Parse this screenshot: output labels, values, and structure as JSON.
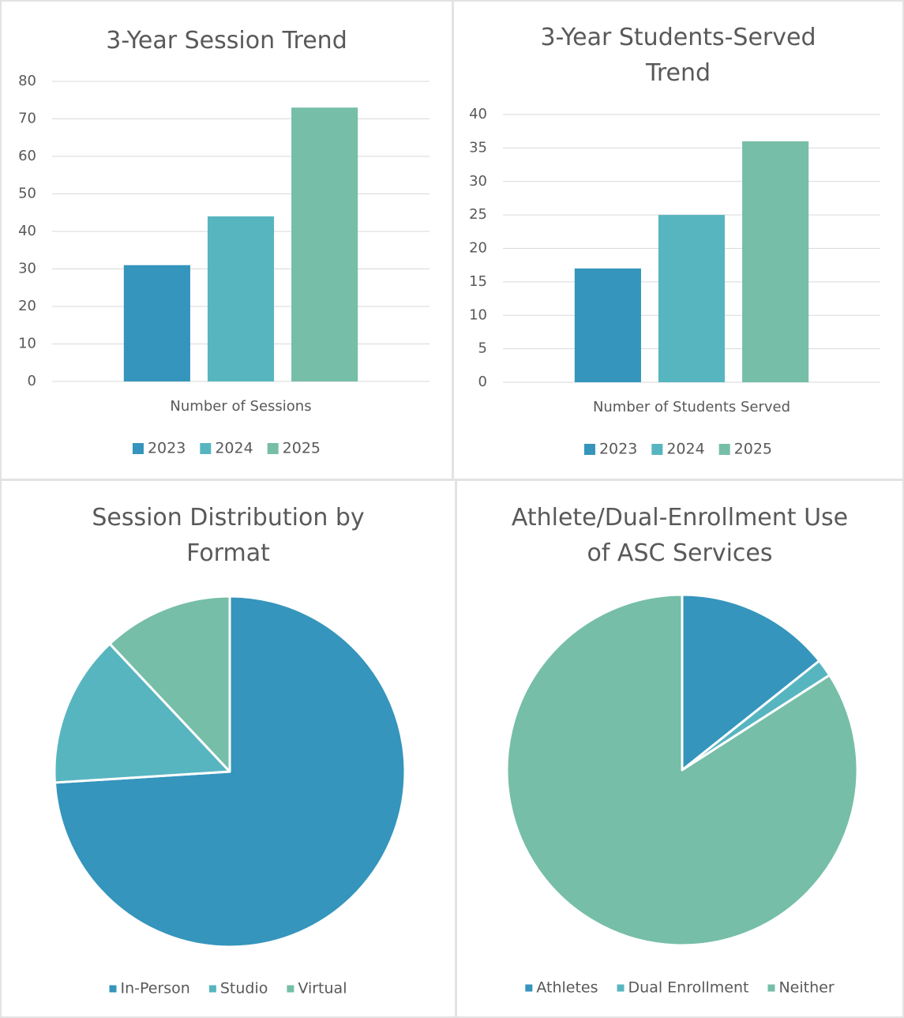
{
  "chart_data": [
    {
      "type": "bar",
      "title": "3-Year Session Trend",
      "categories": [
        "Number of Sessions"
      ],
      "series": [
        {
          "name": "2023",
          "color": "#3595bc",
          "values": [
            31
          ]
        },
        {
          "name": "2024",
          "color": "#57b5c0",
          "values": [
            44
          ]
        },
        {
          "name": "2025",
          "color": "#76bea8",
          "values": [
            73
          ]
        }
      ],
      "ylim": [
        0,
        80
      ],
      "yticks": [
        0,
        10,
        20,
        30,
        40,
        50,
        60,
        70,
        80
      ],
      "grid": true,
      "legend": "bottom"
    },
    {
      "type": "bar",
      "title": "3-Year Students-Served Trend",
      "categories": [
        "Number of Students Served"
      ],
      "series": [
        {
          "name": "2023",
          "color": "#3595bc",
          "values": [
            17
          ]
        },
        {
          "name": "2024",
          "color": "#57b5c0",
          "values": [
            25
          ]
        },
        {
          "name": "2025",
          "color": "#76bea8",
          "values": [
            36
          ]
        }
      ],
      "ylim": [
        0,
        40
      ],
      "yticks": [
        0,
        5,
        10,
        15,
        20,
        25,
        30,
        35,
        40
      ],
      "grid": true,
      "legend": "bottom"
    },
    {
      "type": "pie",
      "title": "Session Distribution by Format",
      "categories": [
        "In-Person",
        "Studio",
        "Virtual"
      ],
      "values": [
        74,
        14,
        12
      ],
      "colors": [
        "#3595bc",
        "#57b5c0",
        "#76bea8"
      ],
      "legend": "bottom"
    },
    {
      "type": "pie",
      "title": "Athlete/Dual-Enrollment Use of ASC Services",
      "categories": [
        "Athletes",
        "Dual Enrollment",
        "Neither"
      ],
      "values": [
        14.3,
        1.6,
        84.1
      ],
      "colors": [
        "#3595bc",
        "#57b5c0",
        "#76bea8"
      ],
      "legend": "bottom"
    }
  ]
}
